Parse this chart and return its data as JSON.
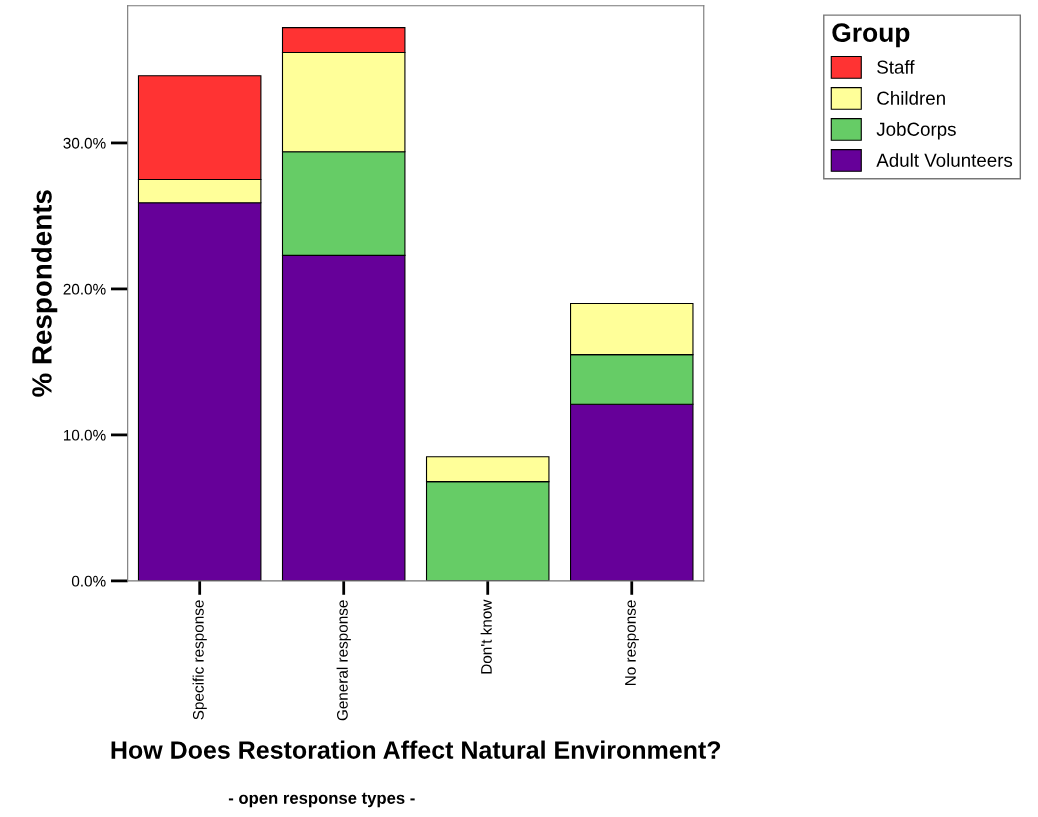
{
  "chart_data": {
    "type": "bar",
    "stacked": true,
    "xlabel": "How Does Restoration Affect Natural Environment?",
    "subtitle": "- open response types -",
    "ylabel": "% Respondents",
    "legend_title": "Group",
    "legend": "top right",
    "grid": false,
    "categories": [
      "Specific response",
      "General response",
      "Don't know",
      "No response"
    ],
    "ylim": [
      0,
      39.4
    ],
    "yticks": [
      {
        "value": 0,
        "label": "0.0%"
      },
      {
        "value": 10,
        "label": "10.0%"
      },
      {
        "value": 20,
        "label": "20.0%"
      },
      {
        "value": 30,
        "label": "30.0%"
      }
    ],
    "series": [
      {
        "name": "Adult Volunteers",
        "color": "#660099",
        "values": [
          25.9,
          22.3,
          null,
          12.1
        ]
      },
      {
        "name": "JobCorps",
        "color": "#66cc66",
        "values": [
          null,
          7.1,
          6.8,
          3.4
        ]
      },
      {
        "name": "Children",
        "color": "#ffff99",
        "values": [
          1.6,
          6.8,
          1.7,
          3.5
        ]
      },
      {
        "name": "Staff",
        "color": "#ff3333",
        "values": [
          7.1,
          1.7,
          null,
          null
        ]
      }
    ]
  }
}
